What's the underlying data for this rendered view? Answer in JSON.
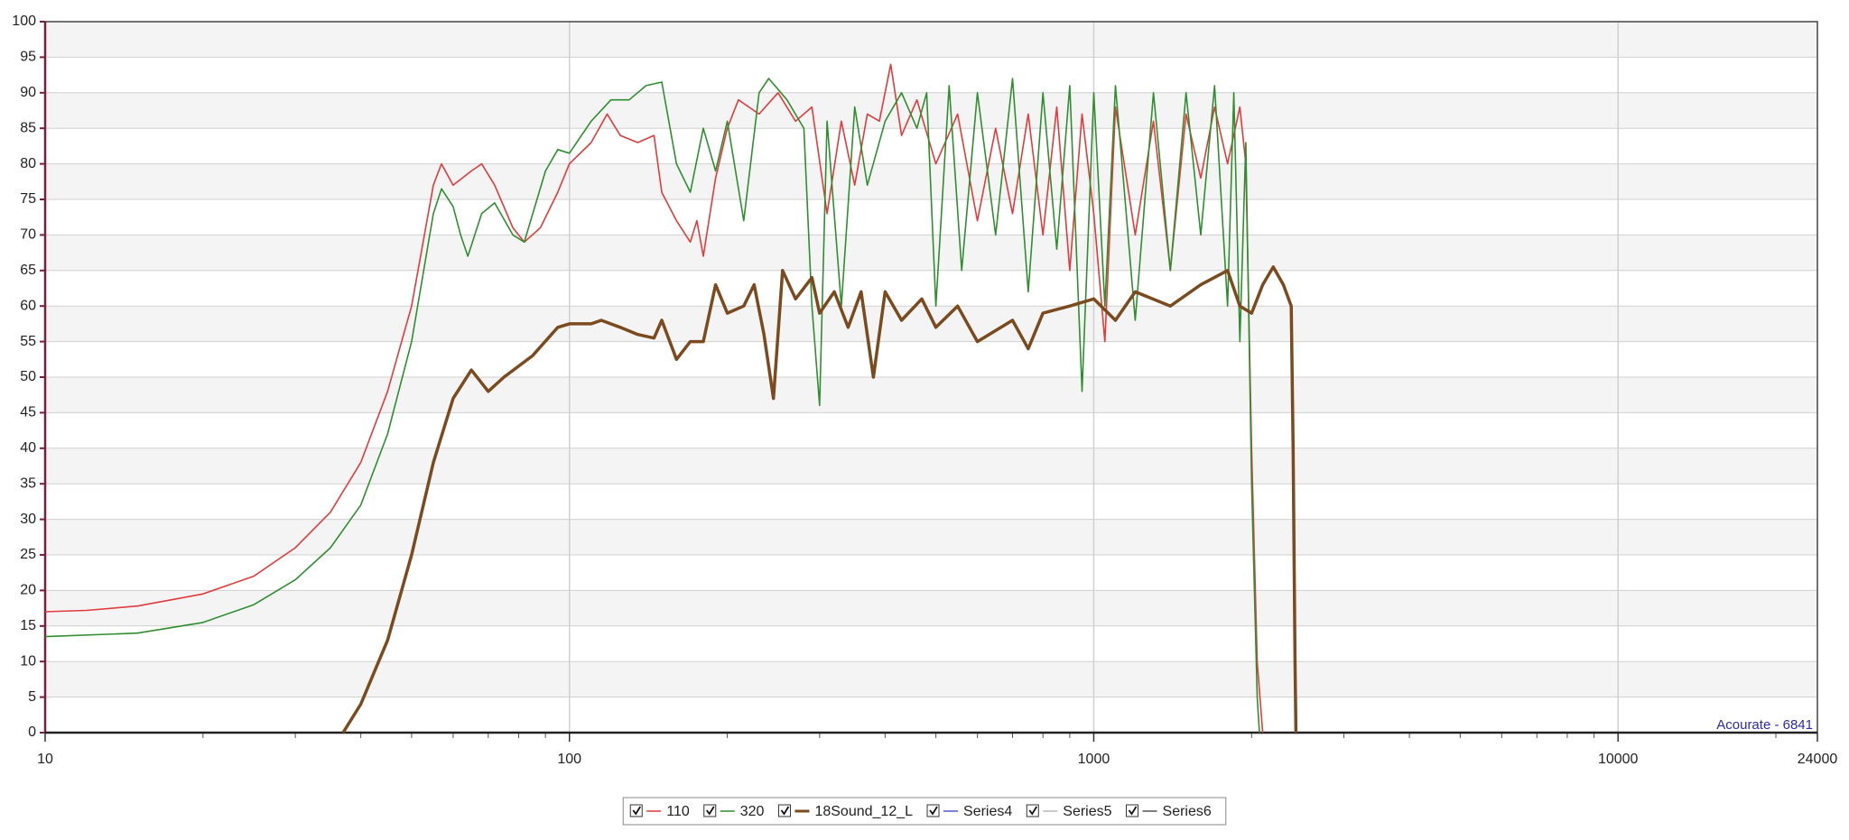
{
  "chart_data": {
    "type": "line",
    "log_x": true,
    "grid": true,
    "annotation": "Acourate - 6841",
    "xlim": [
      10,
      24000
    ],
    "xticks": [
      10,
      100,
      1000,
      10000,
      24000
    ],
    "xminorticks": [
      20,
      30,
      40,
      50,
      60,
      70,
      80,
      90,
      200,
      300,
      400,
      500,
      600,
      700,
      800,
      900,
      2000,
      3000,
      4000,
      5000,
      6000,
      7000,
      8000,
      9000,
      20000
    ],
    "ylim": [
      0,
      100
    ],
    "yticks": [
      0,
      5,
      10,
      15,
      20,
      25,
      30,
      35,
      40,
      45,
      50,
      55,
      60,
      65,
      70,
      75,
      80,
      85,
      90,
      95,
      100
    ],
    "series": [
      {
        "name": "110",
        "color": "#e03c3c",
        "x": [
          10,
          12,
          15,
          20,
          25,
          30,
          35,
          40,
          45,
          50,
          55,
          57,
          60,
          65,
          68,
          72,
          78,
          82,
          88,
          95,
          100,
          110,
          118,
          125,
          135,
          145,
          150,
          160,
          170,
          175,
          180,
          190,
          200,
          210,
          230,
          250,
          270,
          290,
          310,
          330,
          350,
          370,
          390,
          410,
          430,
          460,
          500,
          550,
          600,
          650,
          700,
          750,
          800,
          850,
          900,
          950,
          1000,
          1050,
          1100,
          1200,
          1300,
          1400,
          1500,
          1600,
          1700,
          1800,
          1900,
          1950,
          2000,
          2050,
          2100
        ],
        "values": [
          17,
          17.2,
          17.8,
          19.5,
          22,
          26,
          31,
          38,
          48,
          60,
          77,
          80,
          77,
          79,
          80,
          77,
          71,
          69,
          71,
          76,
          80,
          83,
          87,
          84,
          83,
          84,
          76,
          72,
          69,
          72,
          67,
          78,
          85,
          89,
          87,
          90,
          86,
          88,
          73,
          86,
          77,
          87,
          86,
          94,
          84,
          89,
          80,
          87,
          72,
          85,
          73,
          87,
          70,
          88,
          65,
          87,
          73,
          55,
          88,
          70,
          86,
          65,
          87,
          78,
          88,
          80,
          88,
          80,
          40,
          10,
          0
        ]
      },
      {
        "name": "320",
        "color": "#2f8f2f",
        "x": [
          10,
          15,
          20,
          25,
          30,
          35,
          40,
          45,
          50,
          55,
          57,
          60,
          62,
          64,
          68,
          72,
          78,
          82,
          90,
          95,
          100,
          110,
          120,
          130,
          140,
          150,
          160,
          170,
          180,
          190,
          200,
          215,
          230,
          240,
          260,
          280,
          290,
          300,
          310,
          330,
          350,
          370,
          400,
          430,
          460,
          480,
          500,
          530,
          560,
          600,
          650,
          700,
          750,
          800,
          850,
          900,
          950,
          1000,
          1050,
          1100,
          1200,
          1300,
          1400,
          1500,
          1600,
          1700,
          1800,
          1850,
          1900,
          1950,
          2000,
          2050,
          2070
        ],
        "values": [
          13.5,
          14,
          15.5,
          18,
          21.5,
          26,
          32,
          42,
          55,
          73,
          76.5,
          74,
          70,
          67,
          73,
          74.5,
          70,
          69,
          79,
          82,
          81.5,
          86,
          89,
          89,
          91,
          91.5,
          80,
          76,
          85,
          79,
          86,
          72,
          90,
          92,
          89,
          85,
          60,
          46,
          86,
          60,
          88,
          77,
          86,
          90,
          85,
          90,
          60,
          91,
          65,
          90,
          70,
          92,
          62,
          90,
          68,
          91,
          48,
          90,
          60,
          91,
          58,
          90,
          65,
          90,
          70,
          91,
          60,
          90,
          55,
          83,
          35,
          5,
          0
        ]
      },
      {
        "name": "18Sound_12_L",
        "color": "#7b4a1e",
        "x": [
          37,
          40,
          45,
          50,
          55,
          60,
          65,
          70,
          75,
          85,
          95,
          100,
          110,
          115,
          125,
          135,
          145,
          150,
          160,
          170,
          180,
          190,
          200,
          215,
          225,
          235,
          245,
          255,
          270,
          290,
          300,
          320,
          340,
          360,
          380,
          400,
          430,
          470,
          500,
          550,
          600,
          700,
          750,
          800,
          900,
          1000,
          1100,
          1200,
          1400,
          1600,
          1800,
          1900,
          2000,
          2100,
          2200,
          2300,
          2380,
          2400,
          2420,
          2430
        ],
        "values": [
          0,
          4,
          13,
          25,
          38,
          47,
          51,
          48,
          50,
          53,
          57,
          57.5,
          57.5,
          58,
          57,
          56,
          55.5,
          58,
          52.5,
          55,
          55,
          63,
          59,
          60,
          63,
          56,
          47,
          65,
          61,
          64,
          59,
          62,
          57,
          62,
          50,
          62,
          58,
          61,
          57,
          60,
          55,
          58,
          54,
          59,
          60,
          61,
          58,
          62,
          60,
          63,
          65,
          60,
          59,
          63,
          65.5,
          63,
          60,
          40,
          10,
          0
        ]
      },
      {
        "name": "Series4",
        "color": "#4a5bd6",
        "x": [],
        "values": []
      },
      {
        "name": "Series5",
        "color": "#b8b8b8",
        "x": [],
        "values": []
      },
      {
        "name": "Series6",
        "color": "#555555",
        "x": [],
        "values": []
      }
    ]
  }
}
